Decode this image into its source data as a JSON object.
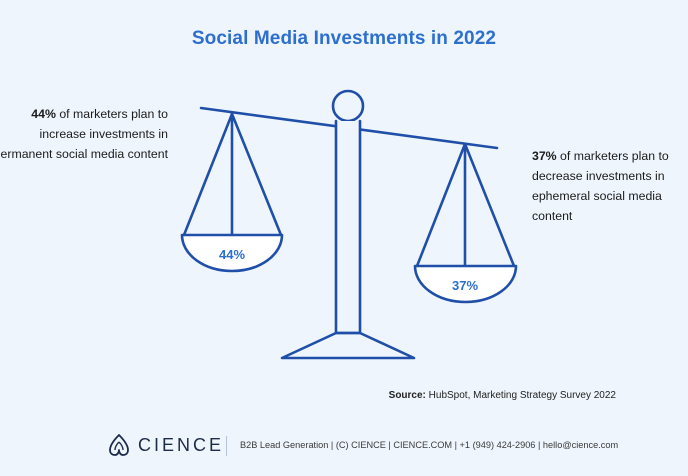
{
  "title": "Social Media Investments in 2022",
  "left_stat": {
    "value": "44%",
    "text": " of marketers plan to increase investments in permanent social media content"
  },
  "right_stat": {
    "value": "37%",
    "text": " of marketers plan to decrease investments in ephemeral social media content"
  },
  "left_pan_label": "44%",
  "right_pan_label": "37%",
  "source": {
    "label": "Source:",
    "text": " HubSpot, Marketing Strategy Survey 2022"
  },
  "footer": {
    "logo_text": "CIENCE",
    "info": "B2B Lead Generation | (C) CIENCE | CIENCE.COM | +1 (949) 424-2906 | hello@cience.com"
  },
  "colors": {
    "accent": "#2d6fce",
    "scale_stroke": "#1f4fa8",
    "background": "#eef5fc",
    "pan_fill": "#ffffff"
  }
}
